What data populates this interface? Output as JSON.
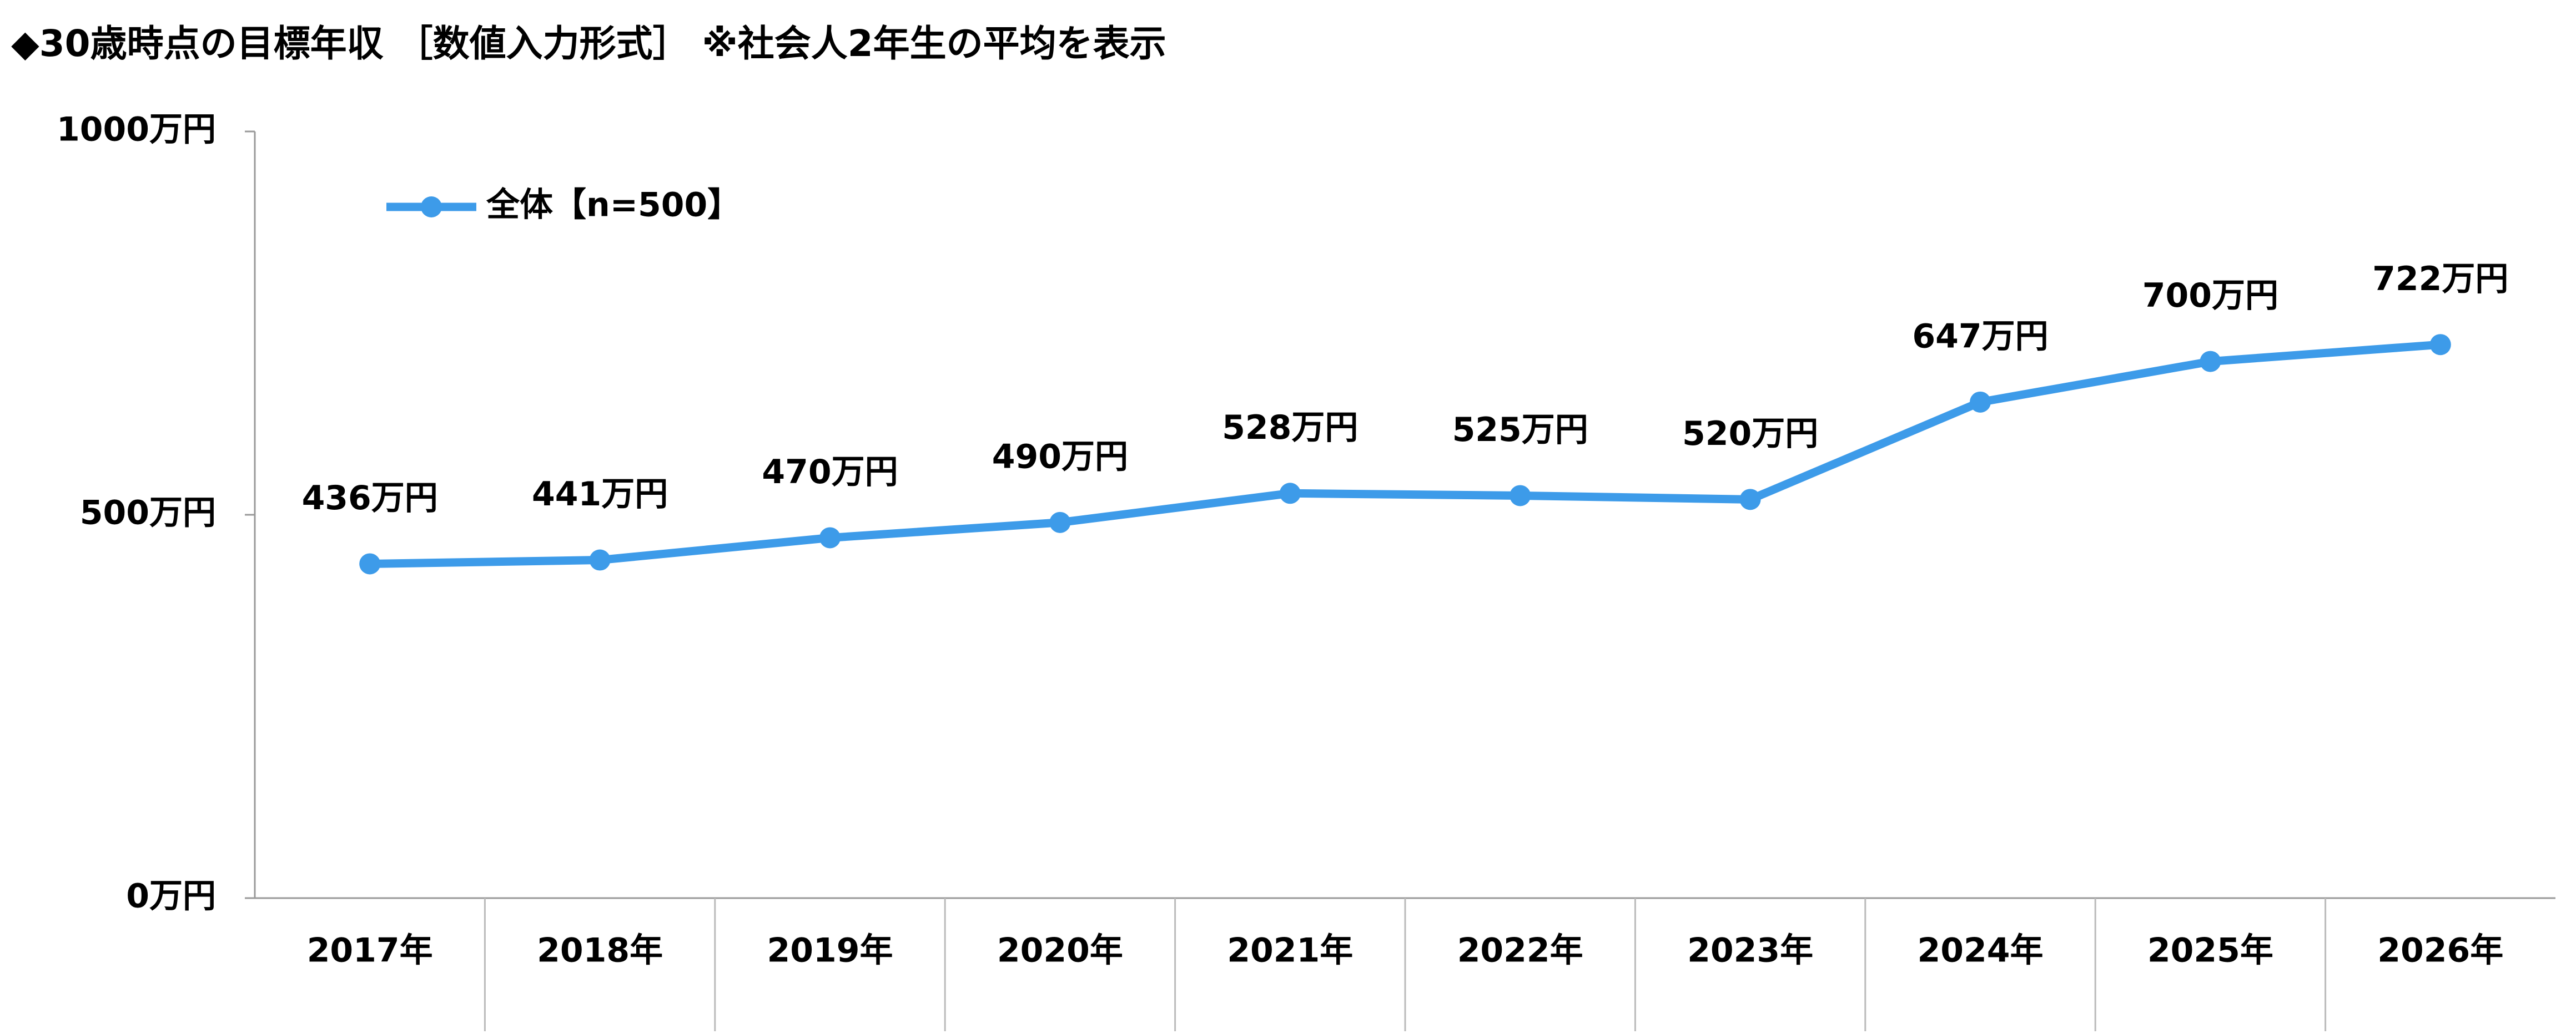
{
  "chart_data": {
    "type": "line",
    "title": "◆30歳時点の目標年収 ［数値入力形式］ ※社会人2年生の平均を表示",
    "categories": [
      "2017年",
      "2018年",
      "2019年",
      "2020年",
      "2021年",
      "2022年",
      "2023年",
      "2024年",
      "2025年",
      "2026年"
    ],
    "series": [
      {
        "name": "全体【n=500】",
        "color": "#3d9be9",
        "values": [
          436,
          441,
          470,
          490,
          528,
          525,
          520,
          647,
          700,
          722
        ],
        "value_labels": [
          "436万円",
          "441万円",
          "470万円",
          "490万円",
          "528万円",
          "525万円",
          "520万円",
          "647万円",
          "700万円",
          "722万円"
        ]
      }
    ],
    "ylim": [
      0,
      1000
    ],
    "yticks": [
      {
        "value": 0,
        "label": "0万円"
      },
      {
        "value": 500,
        "label": "500万円"
      },
      {
        "value": 1000,
        "label": "1000万円"
      }
    ],
    "legend": "top-left"
  }
}
